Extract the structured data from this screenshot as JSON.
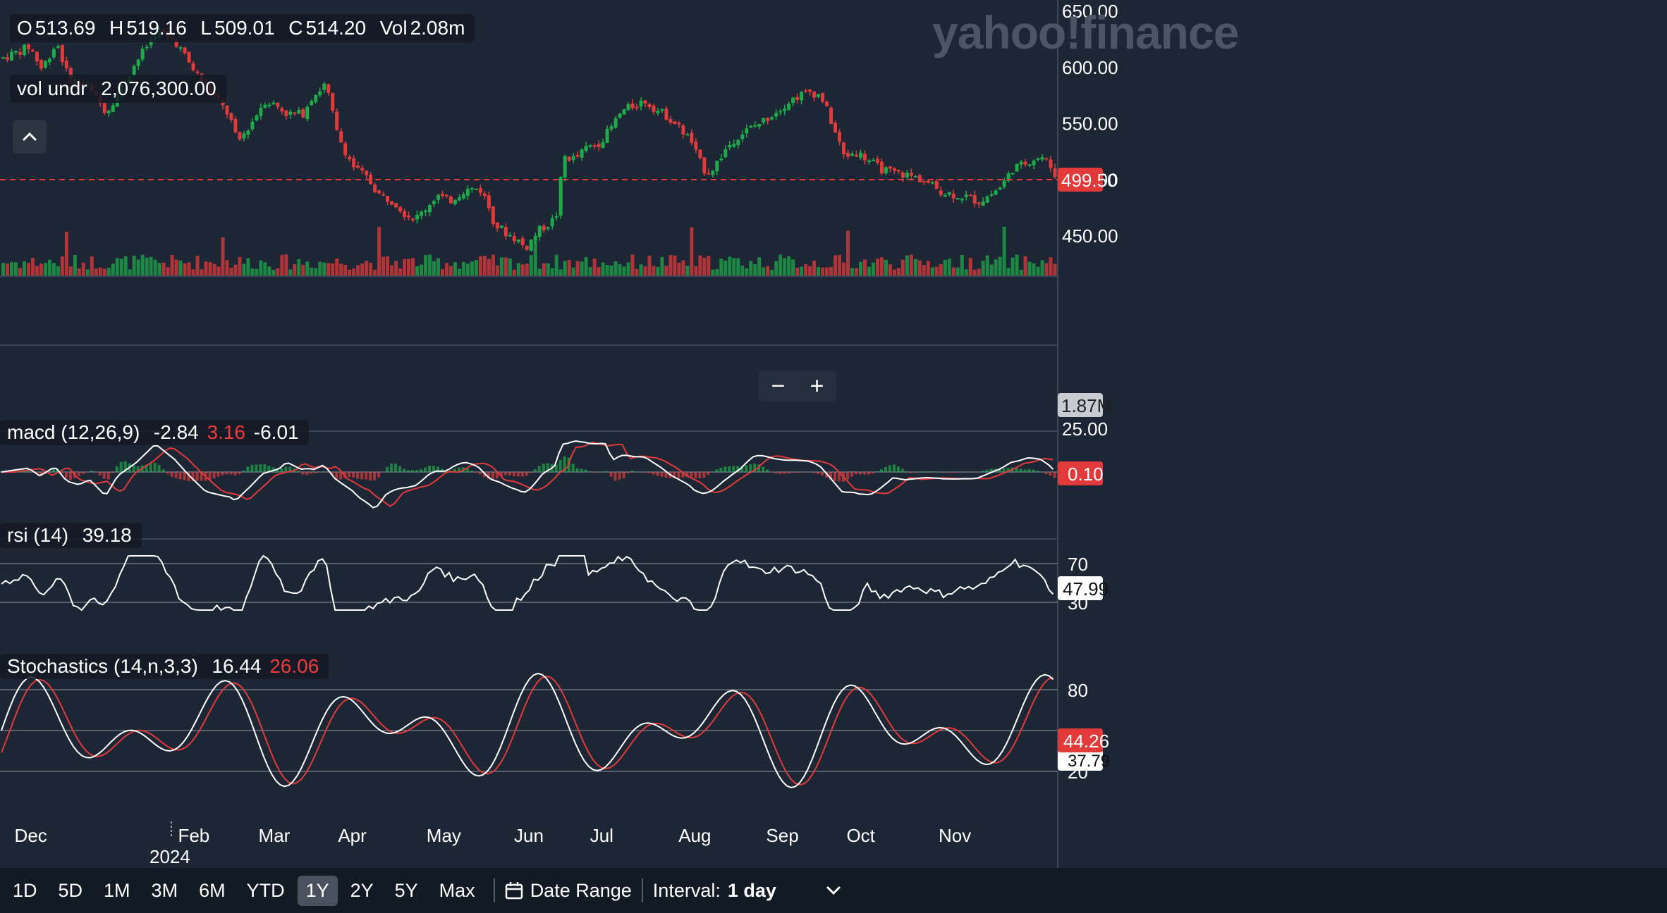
{
  "brand": {
    "logo_text": "yahoo!finance"
  },
  "ohlc_header": {
    "o_label": "O",
    "o_value": "513.69",
    "h_label": "H",
    "h_value": "519.16",
    "l_label": "L",
    "l_value": "509.01",
    "c_label": "C",
    "c_value": "514.20",
    "vol_label": "Vol",
    "vol_value": "2.08m"
  },
  "vol_under": {
    "label": "vol undr",
    "value": "2,076,300.00"
  },
  "indicators": {
    "macd": {
      "name": "macd (12,26,9)",
      "v1": "-2.84",
      "v2": "3.16",
      "v3": "-6.01"
    },
    "rsi": {
      "name": "rsi (14)",
      "value": "39.18"
    },
    "stoch": {
      "name": "Stochastics (14,n,3,3)",
      "v1": "16.44",
      "v2": "26.06"
    }
  },
  "zoom": {
    "minus": "−",
    "plus": "+"
  },
  "toolbar": {
    "ranges": [
      "1D",
      "5D",
      "1M",
      "3M",
      "6M",
      "YTD",
      "1Y",
      "2Y",
      "5Y",
      "Max"
    ],
    "active_range": "1Y",
    "date_range_label": "Date Range",
    "interval_label": "Interval:",
    "interval_value": "1 day"
  },
  "colors": {
    "up": "#1eaa4a",
    "down": "#e23a3a",
    "background": "#1d2634",
    "macd_line": "#ffffff",
    "signal_line": "#e23a3a"
  },
  "chart_data": {
    "type": "candlestick",
    "price_axis": {
      "ticks": [
        "650.00",
        "600.00",
        "550.00",
        "500.00",
        "450.00"
      ],
      "ylim": [
        425,
        660
      ]
    },
    "price_badge": "499.50",
    "volume_badge": "1.87M",
    "macd_axis": {
      "ticks": [
        "25.00"
      ],
      "badge": "0.10"
    },
    "rsi_axis": {
      "ticks": [
        "70",
        "30"
      ],
      "badge": "47.99"
    },
    "stoch_axis": {
      "ticks": [
        "80",
        "20"
      ],
      "badge": "44.26",
      "badge2": "37.79"
    },
    "x_labels": [
      "Dec",
      "Feb",
      "Mar",
      "Apr",
      "May",
      "Jun",
      "Jul",
      "Aug",
      "Sep",
      "Oct",
      "Nov"
    ],
    "year_label": "2024",
    "price_path": [
      [
        0,
        608
      ],
      [
        14,
        618
      ],
      [
        20,
        598
      ],
      [
        28,
        622
      ],
      [
        34,
        590
      ],
      [
        44,
        582
      ],
      [
        54,
        560
      ],
      [
        62,
        584
      ],
      [
        70,
        606
      ],
      [
        80,
        632
      ],
      [
        90,
        622
      ],
      [
        98,
        600
      ],
      [
        108,
        578
      ],
      [
        118,
        556
      ],
      [
        122,
        532
      ],
      [
        130,
        552
      ],
      [
        136,
        570
      ],
      [
        142,
        566
      ],
      [
        148,
        558
      ],
      [
        156,
        558
      ],
      [
        160,
        572
      ],
      [
        164,
        578
      ],
      [
        168,
        585
      ],
      [
        174,
        540
      ],
      [
        182,
        512
      ],
      [
        190,
        500
      ],
      [
        196,
        486
      ],
      [
        204,
        480
      ],
      [
        210,
        468
      ],
      [
        216,
        466
      ],
      [
        222,
        478
      ],
      [
        226,
        486
      ],
      [
        232,
        480
      ],
      [
        240,
        490
      ],
      [
        248,
        492
      ],
      [
        252,
        480
      ],
      [
        256,
        460
      ],
      [
        262,
        452
      ],
      [
        268,
        446
      ],
      [
        272,
        438
      ],
      [
        276,
        448
      ],
      [
        280,
        456
      ],
      [
        284,
        460
      ],
      [
        288,
        466
      ],
      [
        292,
        520
      ],
      [
        298,
        518
      ],
      [
        304,
        528
      ],
      [
        310,
        532
      ],
      [
        316,
        544
      ],
      [
        322,
        560
      ],
      [
        328,
        565
      ],
      [
        334,
        570
      ],
      [
        340,
        562
      ],
      [
        346,
        556
      ],
      [
        352,
        546
      ],
      [
        358,
        535
      ],
      [
        362,
        518
      ],
      [
        366,
        506
      ],
      [
        370,
        510
      ],
      [
        376,
        526
      ],
      [
        382,
        538
      ],
      [
        390,
        546
      ],
      [
        396,
        552
      ],
      [
        402,
        560
      ],
      [
        408,
        568
      ],
      [
        414,
        574
      ],
      [
        420,
        578
      ],
      [
        426,
        574
      ],
      [
        432,
        548
      ],
      [
        438,
        520
      ],
      [
        444,
        524
      ],
      [
        450,
        518
      ],
      [
        456,
        510
      ],
      [
        462,
        506
      ],
      [
        470,
        504
      ],
      [
        478,
        500
      ],
      [
        484,
        494
      ],
      [
        490,
        488
      ],
      [
        496,
        486
      ],
      [
        502,
        484
      ],
      [
        508,
        480
      ],
      [
        514,
        486
      ],
      [
        520,
        494
      ],
      [
        526,
        510
      ],
      [
        530,
        512
      ],
      [
        536,
        518
      ],
      [
        541,
        520
      ],
      [
        546,
        510
      ],
      [
        550,
        498
      ]
    ]
  }
}
